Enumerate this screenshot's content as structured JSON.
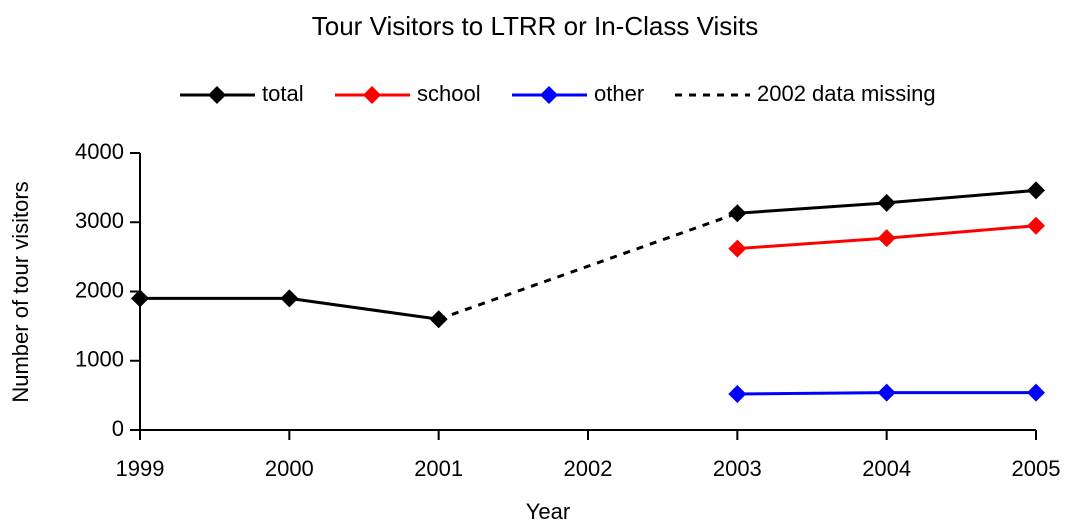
{
  "chart_data": {
    "type": "line",
    "title": "Tour Visitors to LTRR or In-Class Visits",
    "xlabel": "Year",
    "ylabel": "Number of tour visitors",
    "x": [
      1999,
      2000,
      2001,
      2002,
      2003,
      2004,
      2005
    ],
    "series": [
      {
        "name": "total",
        "color": "#000000",
        "marker": "diamond",
        "linestyle": "solid",
        "values": [
          1900,
          1900,
          1600,
          null,
          3130,
          3280,
          3460
        ]
      },
      {
        "name": "school",
        "color": "#ff0000",
        "marker": "diamond",
        "linestyle": "solid",
        "values": [
          null,
          null,
          null,
          null,
          2620,
          2770,
          2950
        ]
      },
      {
        "name": "other",
        "color": "#0000ff",
        "marker": "diamond",
        "linestyle": "solid",
        "values": [
          null,
          null,
          null,
          null,
          520,
          540,
          540
        ]
      },
      {
        "name": "2002 data missing",
        "color": "#000000",
        "marker": "none",
        "linestyle": "dashed",
        "x": [
          2001,
          2003
        ],
        "values": [
          1600,
          3130
        ]
      }
    ],
    "xlim": [
      1999,
      2005
    ],
    "xticks": [
      1999,
      2000,
      2001,
      2002,
      2003,
      2004,
      2005
    ],
    "ylim": [
      0,
      4000
    ],
    "yticks": [
      0,
      1000,
      2000,
      3000,
      4000
    ],
    "grid": false,
    "legend": "top"
  }
}
